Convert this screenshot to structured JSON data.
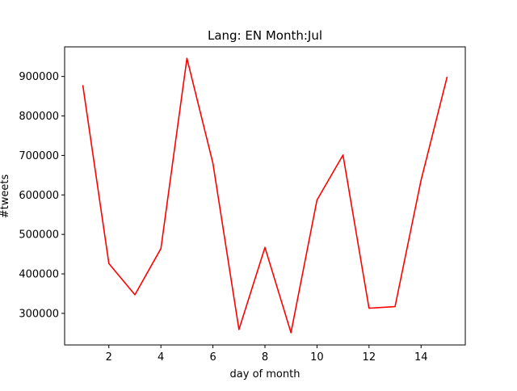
{
  "chart_data": {
    "type": "line",
    "title": "Lang: EN Month:Jul",
    "xlabel": "day of month",
    "ylabel": "#tweets",
    "xlim": [
      0.3,
      15.7
    ],
    "ylim": [
      220000,
      975000
    ],
    "xticks": [
      2,
      4,
      6,
      8,
      10,
      12,
      14
    ],
    "xtick_labels": [
      "2",
      "4",
      "6",
      "8",
      "10",
      "12",
      "14"
    ],
    "yticks": [
      300000,
      400000,
      500000,
      600000,
      700000,
      800000,
      900000
    ],
    "ytick_labels": [
      "300000",
      "400000",
      "500000",
      "600000",
      "700000",
      "800000",
      "900000"
    ],
    "grid": false,
    "legend": "none",
    "series": [
      {
        "color": "#ff0000",
        "x": [
          1,
          2,
          3,
          4,
          5,
          6,
          7,
          8,
          9,
          10,
          11,
          12,
          13,
          14,
          15
        ],
        "y": [
          878000,
          426000,
          347000,
          464000,
          946000,
          680000,
          259000,
          467000,
          251000,
          587000,
          701000,
          313000,
          317000,
          637000,
          899000
        ]
      }
    ]
  }
}
